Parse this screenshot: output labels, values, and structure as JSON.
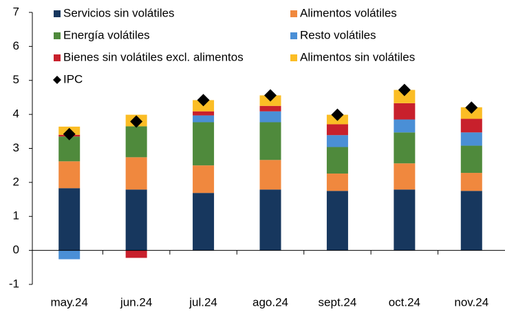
{
  "chart_data": {
    "type": "bar",
    "stacked": true,
    "categories": [
      "may.24",
      "jun.24",
      "jul.24",
      "ago.24",
      "sept.24",
      "oct.24",
      "nov.24"
    ],
    "series": [
      {
        "name": "Servicios sin volátiles",
        "color": "#17375e",
        "values": [
          1.83,
          1.79,
          1.69,
          1.79,
          1.75,
          1.79,
          1.75
        ]
      },
      {
        "name": "Alimentos volátiles",
        "color": "#f0883e",
        "values": [
          0.79,
          0.95,
          0.81,
          0.87,
          0.51,
          0.77,
          0.53
        ]
      },
      {
        "name": "Energía volátiles",
        "color": "#4f8a3c",
        "values": [
          0.73,
          0.91,
          1.27,
          1.11,
          0.78,
          0.91,
          0.8
        ]
      },
      {
        "name": "Resto volátiles",
        "color": "#4a8fd6",
        "values": [
          -0.26,
          0,
          0.2,
          0.32,
          0.35,
          0.38,
          0.39
        ]
      },
      {
        "name": "Bienes sin volátiles excl. alimentos",
        "color": "#c8202c",
        "values": [
          0.05,
          -0.22,
          0.12,
          0.16,
          0.32,
          0.48,
          0.4
        ]
      },
      {
        "name": "Alimentos sin volátiles",
        "color": "#fbbd25",
        "values": [
          0.24,
          0.34,
          0.33,
          0.31,
          0.28,
          0.39,
          0.34
        ]
      },
      {
        "name": "IPC",
        "color": "#000000",
        "mark": "diamond",
        "values": [
          3.42,
          3.79,
          4.42,
          4.56,
          3.99,
          4.72,
          4.2
        ]
      }
    ],
    "ylim": [
      -1,
      7
    ],
    "yticks": [
      -1,
      0,
      1,
      2,
      3,
      4,
      5,
      6,
      7
    ],
    "legend": "top-left"
  }
}
